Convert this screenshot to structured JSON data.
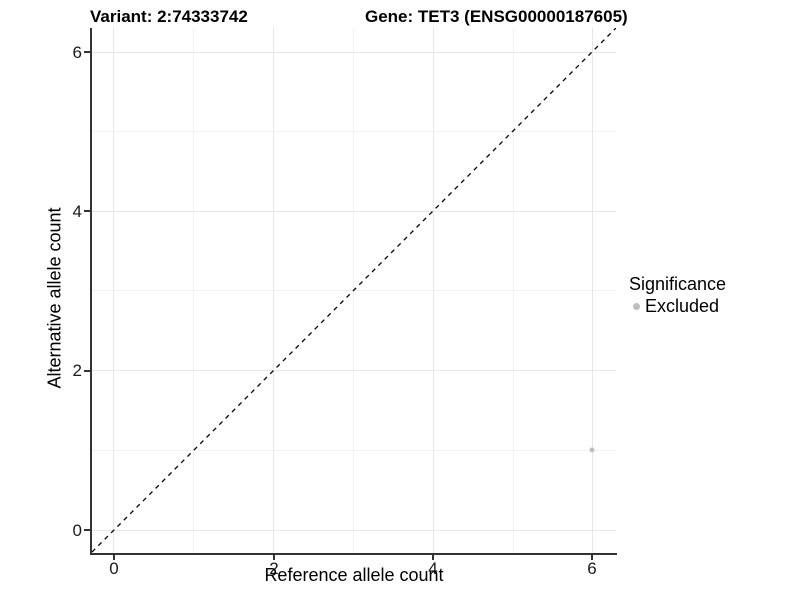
{
  "titles": {
    "variant": "Variant: 2:74333742",
    "gene": "Gene: TET3 (ENSG00000187605)"
  },
  "axes": {
    "x": {
      "label": "Reference allele count",
      "tick_labels": [
        "0",
        "2",
        "4",
        "6"
      ]
    },
    "y": {
      "label": "Alternative allele count",
      "tick_labels": [
        "0",
        "2",
        "4",
        "6"
      ]
    }
  },
  "legend": {
    "title": "Significance",
    "items": [
      {
        "label": "Excluded",
        "color": "#bebebe"
      }
    ]
  },
  "colors": {
    "background": "#ffffff",
    "axis_line": "#333333",
    "grid_major": "#e7e7e7",
    "grid_minor": "#f2f2f2",
    "identity_line": "#000000",
    "excluded_point": "#bebebe",
    "text": "#000000"
  },
  "chart_data": {
    "type": "scatter",
    "title": "Variant: 2:74333742 — Gene: TET3 (ENSG00000187605)",
    "xlabel": "Reference allele count",
    "ylabel": "Alternative allele count",
    "xlim": [
      -0.3,
      6.3
    ],
    "ylim": [
      -0.3,
      6.3
    ],
    "x_ticks": [
      0,
      2,
      4,
      6
    ],
    "y_ticks": [
      0,
      2,
      4,
      6
    ],
    "grid": true,
    "legend_position": "right",
    "series": [
      {
        "name": "Excluded",
        "color": "#bebebe",
        "points": [
          {
            "x": 6,
            "y": 1
          }
        ]
      }
    ],
    "reference_line": {
      "type": "identity (y = x)",
      "style": "dashed",
      "color": "#000000",
      "from": [
        -0.3,
        -0.3
      ],
      "to": [
        6.3,
        6.3
      ]
    }
  }
}
